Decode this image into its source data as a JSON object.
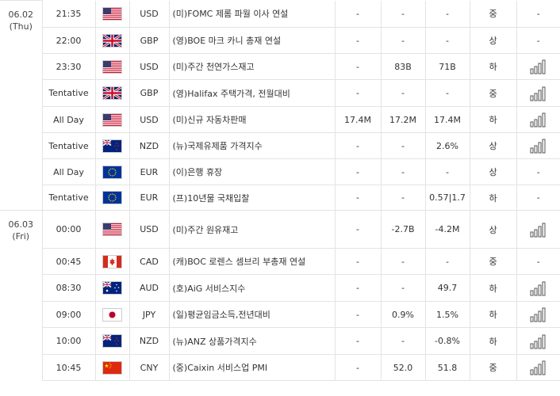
{
  "rows": [
    {
      "date": "06.02",
      "weekday": "(Thu)",
      "time": "21:35",
      "flag": "us-flag-icon",
      "currency": "USD",
      "event": "(미)FOMC 제롬 파월 이사 연설",
      "actual": "-",
      "forecast": "-",
      "previous": "-",
      "importance": "중",
      "chart": "-"
    },
    {
      "date": "",
      "weekday": "",
      "time": "22:00",
      "flag": "uk-flag-icon",
      "currency": "GBP",
      "event": "(영)BOE 마크 카니 총재 연설",
      "actual": "-",
      "forecast": "-",
      "previous": "-",
      "importance": "상",
      "chart": "-"
    },
    {
      "date": "",
      "weekday": "",
      "time": "23:30",
      "flag": "us-flag-icon",
      "currency": "USD",
      "event": "(미)주간 천연가스재고",
      "actual": "-",
      "forecast": "83B",
      "previous": "71B",
      "importance": "하",
      "chart": "bar-chart-icon"
    },
    {
      "date": "",
      "weekday": "",
      "time": "Tentative",
      "flag": "uk-flag-icon",
      "currency": "GBP",
      "event": "(영)Halifax 주택가격, 전월대비",
      "actual": "-",
      "forecast": "-",
      "previous": "-",
      "importance": "중",
      "chart": "bar-chart-icon"
    },
    {
      "date": "",
      "weekday": "",
      "time": "All Day",
      "flag": "us-flag-icon",
      "currency": "USD",
      "event": "(미)신규 자동차판매",
      "actual": "17.4M",
      "forecast": "17.2M",
      "previous": "17.4M",
      "importance": "하",
      "chart": "bar-chart-icon"
    },
    {
      "date": "",
      "weekday": "",
      "time": "Tentative",
      "flag": "nz-flag-icon",
      "currency": "NZD",
      "event": "(뉴)국제유제품 가격지수",
      "actual": "-",
      "forecast": "-",
      "previous": "2.6%",
      "importance": "상",
      "chart": "bar-chart-icon"
    },
    {
      "date": "",
      "weekday": "",
      "time": "All Day",
      "flag": "eu-flag-icon",
      "currency": "EUR",
      "event": "(이)은행 휴장",
      "actual": "-",
      "forecast": "-",
      "previous": "-",
      "importance": "상",
      "chart": "-"
    },
    {
      "date": "",
      "weekday": "",
      "time": "Tentative",
      "flag": "eu-flag-icon",
      "currency": "EUR",
      "event": "(프)10년물 국채입찰",
      "actual": "-",
      "forecast": "-",
      "previous": "0.57|1.7",
      "importance": "하",
      "chart": "-"
    },
    {
      "date": "06.03",
      "weekday": "(Fri)",
      "time": "00:00",
      "flag": "us-flag-icon",
      "currency": "USD",
      "event": "(미)주간 원유재고",
      "actual": "-",
      "forecast": "-2.7B",
      "previous": "-4.2M",
      "importance": "상",
      "chart": "bar-chart-icon"
    },
    {
      "date": "",
      "weekday": "",
      "time": "00:45",
      "flag": "ca-flag-icon",
      "currency": "CAD",
      "event": "(캐)BOC 로렌스 셈브리 부총재 연설",
      "actual": "-",
      "forecast": "-",
      "previous": "-",
      "importance": "중",
      "chart": "-"
    },
    {
      "date": "",
      "weekday": "",
      "time": "08:30",
      "flag": "au-flag-icon",
      "currency": "AUD",
      "event": "(호)AiG 서비스지수",
      "actual": "-",
      "forecast": "-",
      "previous": "49.7",
      "importance": "하",
      "chart": "bar-chart-icon"
    },
    {
      "date": "",
      "weekday": "",
      "time": "09:00",
      "flag": "jp-flag-icon",
      "currency": "JPY",
      "event": "(일)평균임금소득,전년대비",
      "actual": "-",
      "forecast": "0.9%",
      "previous": "1.5%",
      "importance": "하",
      "chart": "bar-chart-icon"
    },
    {
      "date": "",
      "weekday": "",
      "time": "10:00",
      "flag": "nz-flag-icon",
      "currency": "NZD",
      "event": "(뉴)ANZ 상품가격지수",
      "actual": "-",
      "forecast": "-",
      "previous": "-0.8%",
      "importance": "하",
      "chart": "bar-chart-icon"
    },
    {
      "date": "",
      "weekday": "",
      "time": "10:45",
      "flag": "cn-flag-icon",
      "currency": "CNY",
      "event": "(중)Caixin 서비스업 PMI",
      "actual": "-",
      "forecast": "52.0",
      "previous": "51.8",
      "importance": "중",
      "chart": "bar-chart-icon"
    }
  ]
}
